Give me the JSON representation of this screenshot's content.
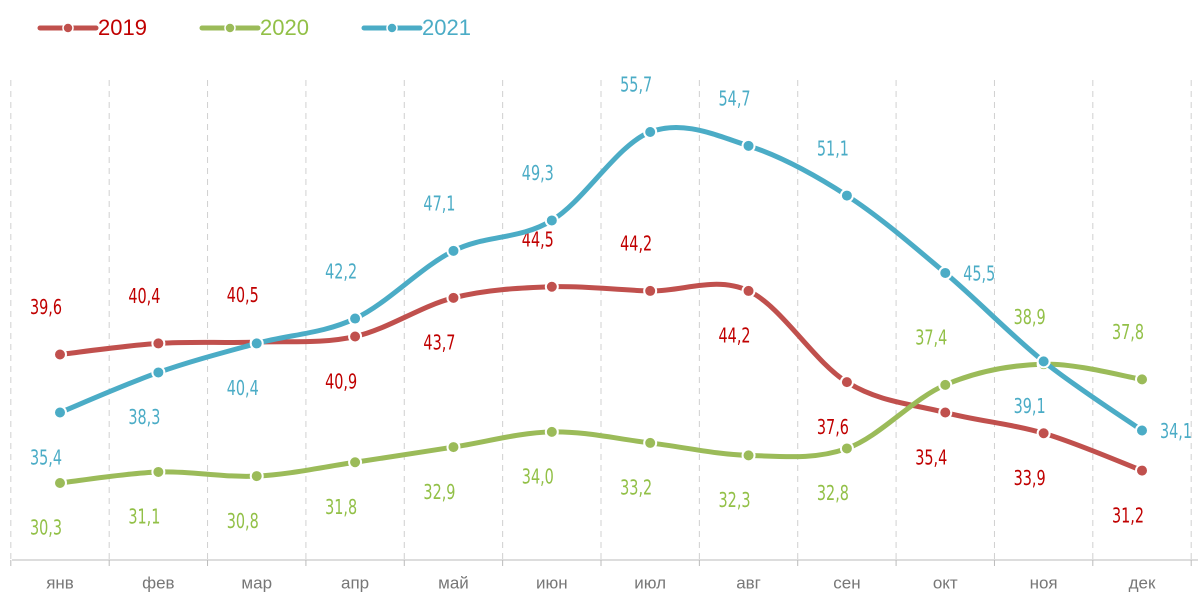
{
  "chart_data": {
    "type": "line",
    "categories": [
      "янв",
      "фев",
      "мар",
      "апр",
      "май",
      "июн",
      "июл",
      "авг",
      "сен",
      "окт",
      "ноя",
      "дек"
    ],
    "series": [
      {
        "name": "2019",
        "color": "#c0504d",
        "label_color": "#c00000",
        "values": [
          39.6,
          40.4,
          40.5,
          40.9,
          43.7,
          44.5,
          44.2,
          44.2,
          37.6,
          35.4,
          33.9,
          31.2
        ],
        "value_labels": [
          "39,6",
          "40,4",
          "40,5",
          "40,9",
          "43,7",
          "44,5",
          "44,2",
          "44,2",
          "37,6",
          "35,4",
          "33,9",
          "31,2"
        ]
      },
      {
        "name": "2020",
        "color": "#9bbb59",
        "label_color": "#92c047",
        "values": [
          30.3,
          31.1,
          30.8,
          31.8,
          32.9,
          34.0,
          33.2,
          32.3,
          32.8,
          37.4,
          38.9,
          37.8
        ],
        "value_labels": [
          "30,3",
          "31,1",
          "30,8",
          "31,8",
          "32,9",
          "34,0",
          "33,2",
          "32,3",
          "32,8",
          "37,4",
          "38,9",
          "37,8"
        ]
      },
      {
        "name": "2021",
        "color": "#4bacc6",
        "label_color": "#4bacc6",
        "values": [
          35.4,
          38.3,
          40.4,
          42.2,
          47.1,
          49.3,
          55.7,
          54.7,
          51.1,
          45.5,
          39.1,
          34.1
        ],
        "value_labels": [
          "35,4",
          "38,3",
          "40,4",
          "42,2",
          "47,1",
          "49,3",
          "55,7",
          "54,7",
          "51,1",
          "45,5",
          "39,1",
          "34,1"
        ]
      }
    ],
    "grid": true,
    "legend": "top-left",
    "smooth": true
  }
}
